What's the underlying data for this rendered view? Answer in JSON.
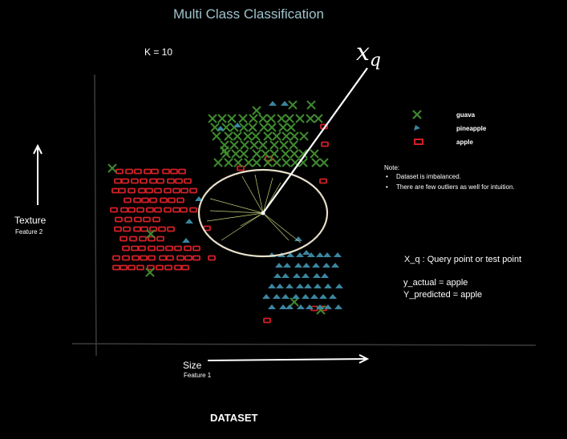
{
  "title": "Multi Class Classification",
  "k_label": "K = 10",
  "query_annotation": {
    "main": "x",
    "sub": "q"
  },
  "axes": {
    "y_label": "Texture",
    "y_sublabel": "Feature 2",
    "x_label": "Size",
    "x_sublabel": "Feature 1"
  },
  "legend": [
    {
      "label": "guava",
      "marker": "x-mark-icon",
      "color": "#3f8a2e"
    },
    {
      "label": "pineapple",
      "marker": "triangle-icon",
      "color": "#3b86a0"
    },
    {
      "label": "apple",
      "marker": "square-icon",
      "color": "#d32027"
    }
  ],
  "note": {
    "title": "Note:",
    "items": [
      "Dataset is imbalanced.",
      "There are few outliers as well for intuition."
    ]
  },
  "query_definition": "X_q :  Query point or  test point",
  "y_actual": "y_actual = apple",
  "y_predicted": "Y_predicted = apple",
  "footer": "DATASET",
  "colors": {
    "guava": "#3f8a2e",
    "pineapple": "#3b86a0",
    "apple": "#d32027",
    "title": "#9fc3cc"
  }
}
